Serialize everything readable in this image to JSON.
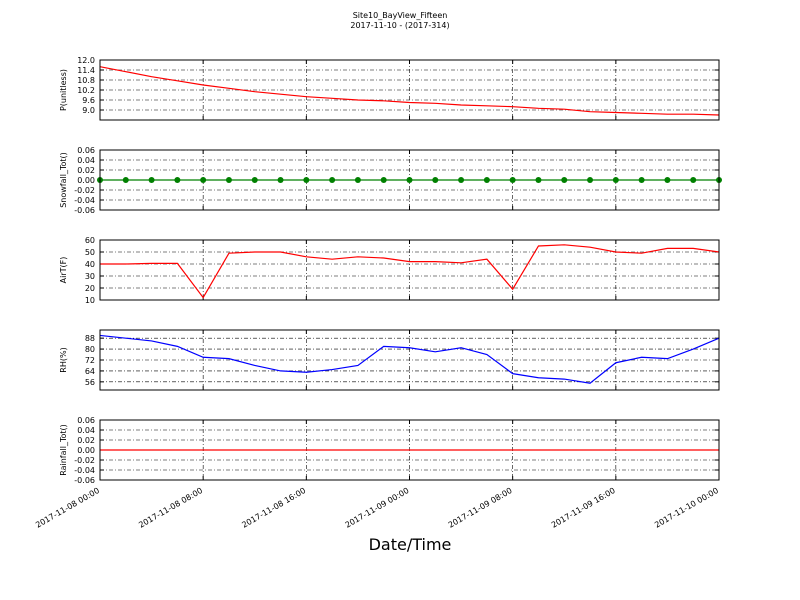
{
  "title": "Site10_BayView_Fifteen",
  "subtitle": "2017-11-10 - (2017-314)",
  "xlabel": "Date/Time",
  "chart_data": [
    {
      "type": "line",
      "ylabel": "P(unitless)",
      "color": "#ff0000",
      "grid": true,
      "x": [
        "2017-11-08 00:00",
        "2017-11-08 02:00",
        "2017-11-08 04:00",
        "2017-11-08 06:00",
        "2017-11-08 08:00",
        "2017-11-08 10:00",
        "2017-11-08 12:00",
        "2017-11-08 14:00",
        "2017-11-08 16:00",
        "2017-11-08 18:00",
        "2017-11-08 20:00",
        "2017-11-08 22:00",
        "2017-11-09 00:00",
        "2017-11-09 02:00",
        "2017-11-09 04:00",
        "2017-11-09 06:00",
        "2017-11-09 08:00",
        "2017-11-09 10:00",
        "2017-11-09 12:00",
        "2017-11-09 14:00",
        "2017-11-09 16:00",
        "2017-11-09 18:00",
        "2017-11-09 20:00",
        "2017-11-09 22:00",
        "2017-11-10 00:00"
      ],
      "values": [
        11.6,
        11.3,
        11.0,
        10.75,
        10.5,
        10.3,
        10.1,
        9.95,
        9.8,
        9.7,
        9.6,
        9.55,
        9.45,
        9.4,
        9.3,
        9.25,
        9.2,
        9.1,
        9.05,
        8.9,
        8.85,
        8.8,
        8.75,
        8.75,
        8.7
      ],
      "xlim": [
        "2017-11-08 00:00",
        "2017-11-10 00:00"
      ],
      "xticks": [
        "2017-11-08 00:00",
        "2017-11-08 08:00",
        "2017-11-08 16:00",
        "2017-11-09 00:00",
        "2017-11-09 08:00",
        "2017-11-09 16:00",
        "2017-11-10 00:00"
      ],
      "ylim": [
        8.4,
        12.0
      ],
      "yticks": [
        {
          "value": 9,
          "label": "9.0"
        },
        9.6,
        10.2,
        10.8,
        11.4,
        {
          "value": 12,
          "label": "12.0"
        }
      ]
    },
    {
      "type": "line",
      "ylabel": "Snowfall_Tot()",
      "color": "#008000",
      "marker": "o",
      "grid": true,
      "x": [
        "2017-11-08 00:00",
        "2017-11-08 02:00",
        "2017-11-08 04:00",
        "2017-11-08 06:00",
        "2017-11-08 08:00",
        "2017-11-08 10:00",
        "2017-11-08 12:00",
        "2017-11-08 14:00",
        "2017-11-08 16:00",
        "2017-11-08 18:00",
        "2017-11-08 20:00",
        "2017-11-08 22:00",
        "2017-11-09 00:00",
        "2017-11-09 02:00",
        "2017-11-09 04:00",
        "2017-11-09 06:00",
        "2017-11-09 08:00",
        "2017-11-09 10:00",
        "2017-11-09 12:00",
        "2017-11-09 14:00",
        "2017-11-09 16:00",
        "2017-11-09 18:00",
        "2017-11-09 20:00",
        "2017-11-09 22:00",
        "2017-11-10 00:00"
      ],
      "values": [
        0,
        0,
        0,
        0,
        0,
        0,
        0,
        0,
        0,
        0,
        0,
        0,
        0,
        0,
        0,
        0,
        0,
        0,
        0,
        0,
        0,
        0,
        0,
        0,
        0
      ],
      "xlim": [
        "2017-11-08 00:00",
        "2017-11-10 00:00"
      ],
      "xticks": [
        "2017-11-08 00:00",
        "2017-11-08 08:00",
        "2017-11-08 16:00",
        "2017-11-09 00:00",
        "2017-11-09 08:00",
        "2017-11-09 16:00",
        "2017-11-10 00:00"
      ],
      "ylim": [
        -0.06,
        0.06
      ],
      "yticks": [
        -0.06,
        -0.04,
        -0.02,
        {
          "value": 0,
          "label": "0.00"
        },
        0.02,
        0.04,
        0.06
      ]
    },
    {
      "type": "line",
      "ylabel": "AirT(F)",
      "color": "#ff0000",
      "grid": true,
      "x": [
        "2017-11-08 00:00",
        "2017-11-08 02:00",
        "2017-11-08 04:00",
        "2017-11-08 06:00",
        "2017-11-08 08:00",
        "2017-11-08 10:00",
        "2017-11-08 12:00",
        "2017-11-08 14:00",
        "2017-11-08 16:00",
        "2017-11-08 18:00",
        "2017-11-08 20:00",
        "2017-11-08 22:00",
        "2017-11-09 00:00",
        "2017-11-09 02:00",
        "2017-11-09 04:00",
        "2017-11-09 06:00",
        "2017-11-09 08:00",
        "2017-11-09 10:00",
        "2017-11-09 12:00",
        "2017-11-09 14:00",
        "2017-11-09 16:00",
        "2017-11-09 18:00",
        "2017-11-09 20:00",
        "2017-11-09 22:00",
        "2017-11-10 00:00"
      ],
      "values": [
        40,
        40,
        40.5,
        40.5,
        12,
        49,
        50,
        50,
        46,
        44,
        46,
        45,
        42,
        42,
        41,
        44,
        19,
        55,
        56,
        54,
        50,
        49,
        53,
        53,
        50
      ],
      "xlim": [
        "2017-11-08 00:00",
        "2017-11-10 00:00"
      ],
      "xticks": [
        "2017-11-08 00:00",
        "2017-11-08 08:00",
        "2017-11-08 16:00",
        "2017-11-09 00:00",
        "2017-11-09 08:00",
        "2017-11-09 16:00",
        "2017-11-10 00:00"
      ],
      "ylim": [
        10,
        60
      ],
      "yticks": [
        10,
        20,
        30,
        40,
        50,
        60
      ]
    },
    {
      "type": "line",
      "ylabel": "RH(%)",
      "color": "#0000ff",
      "grid": true,
      "x": [
        "2017-11-08 00:00",
        "2017-11-08 02:00",
        "2017-11-08 04:00",
        "2017-11-08 06:00",
        "2017-11-08 08:00",
        "2017-11-08 10:00",
        "2017-11-08 12:00",
        "2017-11-08 14:00",
        "2017-11-08 16:00",
        "2017-11-08 18:00",
        "2017-11-08 20:00",
        "2017-11-08 22:00",
        "2017-11-09 00:00",
        "2017-11-09 02:00",
        "2017-11-09 04:00",
        "2017-11-09 06:00",
        "2017-11-09 08:00",
        "2017-11-09 10:00",
        "2017-11-09 12:00",
        "2017-11-09 14:00",
        "2017-11-09 16:00",
        "2017-11-09 18:00",
        "2017-11-09 20:00",
        "2017-11-09 22:00",
        "2017-11-10 00:00"
      ],
      "values": [
        90,
        88,
        86,
        82,
        74,
        73,
        68,
        64,
        63,
        65,
        68,
        82,
        81,
        78,
        81,
        76,
        62,
        59,
        58,
        55,
        70,
        74,
        73,
        80,
        88
      ],
      "xlim": [
        "2017-11-08 00:00",
        "2017-11-10 00:00"
      ],
      "xticks": [
        "2017-11-08 00:00",
        "2017-11-08 08:00",
        "2017-11-08 16:00",
        "2017-11-09 00:00",
        "2017-11-09 08:00",
        "2017-11-09 16:00",
        "2017-11-10 00:00"
      ],
      "ylim": [
        50,
        94
      ],
      "yticks": [
        56,
        64,
        72,
        80,
        88
      ]
    },
    {
      "type": "line",
      "ylabel": "Rainfall_Tot()",
      "color": "#ff0000",
      "grid": true,
      "x": [
        "2017-11-08 00:00",
        "2017-11-08 02:00",
        "2017-11-08 04:00",
        "2017-11-08 06:00",
        "2017-11-08 08:00",
        "2017-11-08 10:00",
        "2017-11-08 12:00",
        "2017-11-08 14:00",
        "2017-11-08 16:00",
        "2017-11-08 18:00",
        "2017-11-08 20:00",
        "2017-11-08 22:00",
        "2017-11-09 00:00",
        "2017-11-09 02:00",
        "2017-11-09 04:00",
        "2017-11-09 06:00",
        "2017-11-09 08:00",
        "2017-11-09 10:00",
        "2017-11-09 12:00",
        "2017-11-09 14:00",
        "2017-11-09 16:00",
        "2017-11-09 18:00",
        "2017-11-09 20:00",
        "2017-11-09 22:00",
        "2017-11-10 00:00"
      ],
      "values": [
        0,
        0,
        0,
        0,
        0,
        0,
        0,
        0,
        0,
        0,
        0,
        0,
        0,
        0,
        0,
        0,
        0,
        0,
        0,
        0,
        0,
        0,
        0,
        0,
        0
      ],
      "xlim": [
        "2017-11-08 00:00",
        "2017-11-10 00:00"
      ],
      "xticks": [
        "2017-11-08 00:00",
        "2017-11-08 08:00",
        "2017-11-08 16:00",
        "2017-11-09 00:00",
        "2017-11-09 08:00",
        "2017-11-09 16:00",
        "2017-11-10 00:00"
      ],
      "ylim": [
        -0.06,
        0.06
      ],
      "yticks": [
        -0.06,
        -0.04,
        -0.02,
        {
          "value": 0,
          "label": "0.00"
        },
        0.02,
        0.04,
        0.06
      ]
    }
  ]
}
